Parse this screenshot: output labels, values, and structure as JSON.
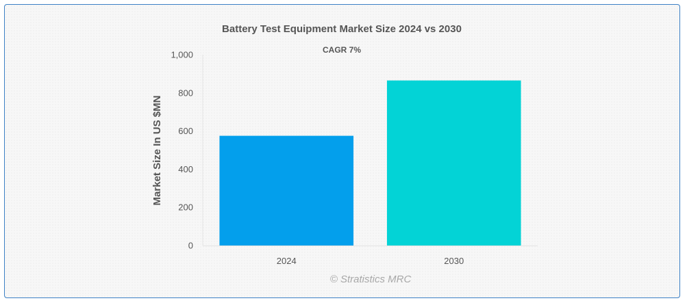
{
  "chart_data": {
    "type": "bar",
    "title": "Battery Test Equipment Market Size 2024 vs 2030",
    "subtitle": "CAGR 7%",
    "xlabel": "",
    "ylabel": "Market Size In US $MN",
    "categories": [
      "2024",
      "2030"
    ],
    "values": [
      575,
      865
    ],
    "colors": [
      "#039fec",
      "#03d3d6"
    ],
    "ylim": [
      0,
      1000
    ],
    "yticks": [
      0,
      200,
      400,
      600,
      800,
      1000
    ],
    "ytick_labels": [
      "0",
      "200",
      "400",
      "600",
      "800",
      "1,000"
    ],
    "grid": false,
    "legend": "none"
  },
  "credit": "© Stratistics MRC"
}
